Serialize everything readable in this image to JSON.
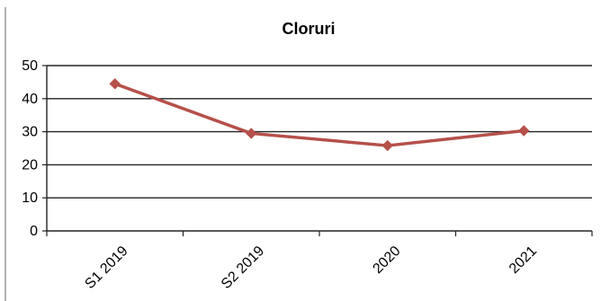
{
  "chart_data": {
    "type": "line",
    "title": "Cloruri",
    "xlabel": "",
    "ylabel": "",
    "categories": [
      "S1 2019",
      "S2 2019",
      "2020",
      "2021"
    ],
    "series": [
      {
        "values": [
          44.5,
          29.5,
          25.8,
          30.3
        ],
        "color": "#b5504a"
      }
    ],
    "ylim": [
      0,
      50
    ],
    "yticks": [
      0,
      10,
      20,
      30,
      40,
      50
    ],
    "grid": true,
    "legend": "none",
    "marker": "diamond"
  }
}
